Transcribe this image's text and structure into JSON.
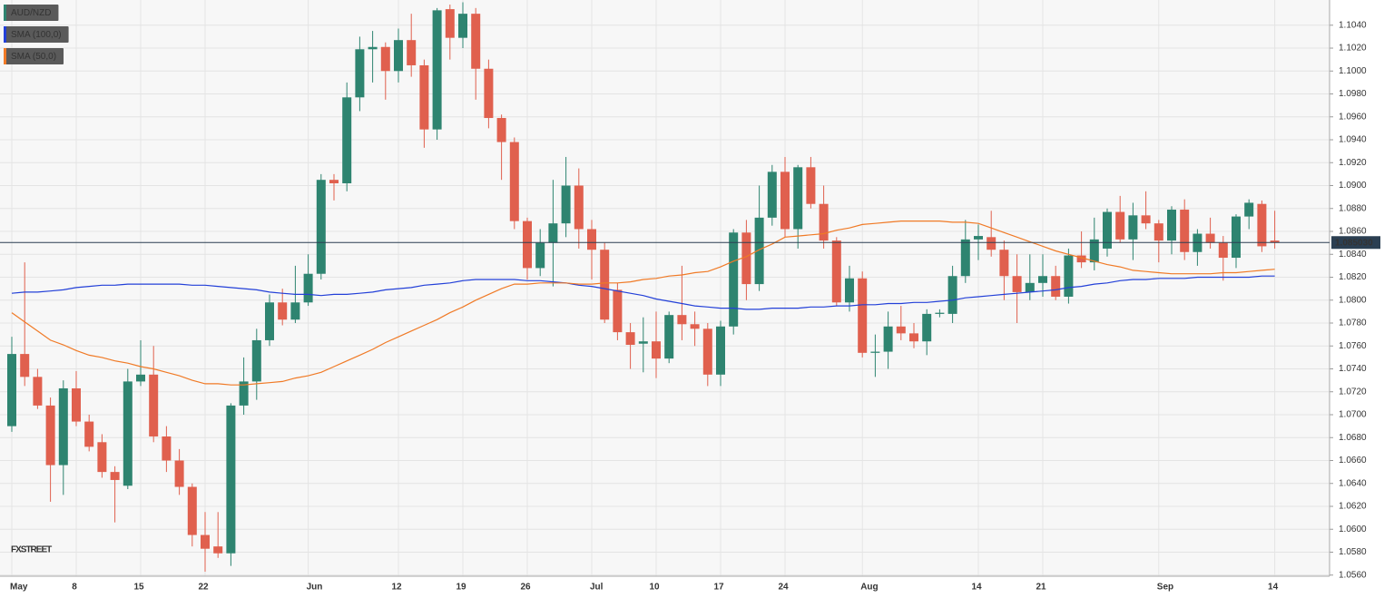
{
  "chart_data": {
    "type": "candlestick",
    "categories": [
      "May",
      null,
      null,
      null,
      null,
      "8",
      null,
      null,
      null,
      null,
      "15",
      null,
      null,
      null,
      null,
      "22",
      null,
      null,
      null,
      null,
      null,
      null,
      null,
      "Jun",
      null,
      null,
      null,
      null,
      null,
      null,
      "12",
      null,
      null,
      null,
      null,
      "19",
      null,
      null,
      null,
      null,
      "26",
      null,
      null,
      null,
      null,
      "Jul",
      null,
      null,
      null,
      null,
      "10",
      null,
      null,
      null,
      null,
      "17",
      null,
      null,
      null,
      null,
      "24",
      null,
      null,
      null,
      null,
      null,
      "Aug",
      null,
      null,
      null,
      null,
      null,
      null,
      null,
      null,
      "14",
      null,
      null,
      null,
      null,
      "21",
      null,
      null,
      null,
      null,
      null,
      null,
      null,
      null,
      "Sep",
      null,
      null,
      null,
      null,
      null,
      null,
      null,
      null,
      "14"
    ],
    "ohlc": {
      "name": "AUD/NZD",
      "up_color": "#2e8470",
      "down_color": "#e0604e",
      "open": [
        1.069,
        1.0753,
        1.0733,
        1.0708,
        1.0656,
        1.0723,
        1.0694,
        1.0676,
        1.065,
        1.0638,
        1.0729,
        1.0735,
        1.0681,
        1.066,
        1.0637,
        1.0595,
        1.0585,
        1.0579,
        1.0708,
        1.0729,
        1.0765,
        1.0798,
        1.0783,
        1.0798,
        1.0823,
        1.0905,
        1.0902,
        1.0977,
        1.1019,
        1.1021,
        1.1,
        1.1027,
        1.1005,
        1.0949,
        1.1054,
        1.1029,
        1.105,
        1.1002,
        1.0959,
        1.0938,
        1.0869,
        1.0828,
        1.085,
        1.0867,
        1.09,
        1.0862,
        1.0844,
        1.0809,
        1.0772,
        1.0762,
        1.0764,
        1.0749,
        1.0787,
        1.0779,
        1.0775,
        1.0735,
        1.0777,
        1.0859,
        1.0814,
        1.0872,
        1.0912,
        1.0862,
        1.0916,
        1.0884,
        1.0852,
        1.0798,
        1.0819,
        1.0754,
        1.0755,
        1.0777,
        1.0771,
        1.0764,
        1.0788,
        1.0788,
        1.0821,
        1.0853,
        1.0855,
        1.0844,
        1.0821,
        1.0807,
        1.0815,
        1.0821,
        1.0803,
        1.0839,
        1.0833,
        1.0845,
        1.0877,
        1.0853,
        1.0874,
        1.0867,
        1.0852,
        1.0879,
        1.0842,
        1.0858,
        1.085,
        1.0837,
        1.0873,
        1.0884,
        1.0852
      ],
      "high": [
        1.0768,
        1.0833,
        1.074,
        1.0715,
        1.073,
        1.0738,
        1.07,
        1.0683,
        1.0655,
        1.074,
        1.0765,
        1.076,
        1.069,
        1.067,
        1.064,
        1.0615,
        1.0615,
        1.071,
        1.075,
        1.0775,
        1.0805,
        1.081,
        1.083,
        1.084,
        1.091,
        1.091,
        1.099,
        1.103,
        1.1035,
        1.1025,
        1.1037,
        1.105,
        1.101,
        1.1055,
        1.1058,
        1.106,
        1.1055,
        1.101,
        1.0962,
        1.0942,
        1.0872,
        1.0862,
        1.0905,
        1.0925,
        1.0915,
        1.087,
        1.085,
        1.0815,
        1.078,
        1.0785,
        1.079,
        1.079,
        1.083,
        1.079,
        1.078,
        1.0782,
        1.0862,
        1.087,
        1.09,
        1.0918,
        1.0925,
        1.0918,
        1.0925,
        1.09,
        1.0855,
        1.083,
        1.0825,
        1.077,
        1.079,
        1.0795,
        1.078,
        1.0792,
        1.0792,
        1.083,
        1.087,
        1.0866,
        1.0878,
        1.0852,
        1.084,
        1.084,
        1.084,
        1.083,
        1.0845,
        1.086,
        1.0872,
        1.088,
        1.0891,
        1.0885,
        1.0895,
        1.087,
        1.0882,
        1.0888,
        1.0862,
        1.0872,
        1.0856,
        1.0875,
        1.0888,
        1.0887,
        1.0878
      ],
      "low": [
        1.0685,
        1.0725,
        1.0705,
        1.0624,
        1.063,
        1.069,
        1.0668,
        1.0645,
        1.0606,
        1.0635,
        1.0725,
        1.0676,
        1.065,
        1.063,
        1.0585,
        1.0563,
        1.0575,
        1.0568,
        1.07,
        1.0713,
        1.076,
        1.0778,
        1.078,
        1.0795,
        1.0818,
        1.0887,
        1.0895,
        1.0965,
        1.099,
        1.0975,
        1.099,
        1.0995,
        1.0933,
        1.094,
        1.101,
        1.102,
        1.0975,
        1.095,
        1.0905,
        1.0862,
        1.0818,
        1.0821,
        1.0812,
        1.0855,
        1.0845,
        1.0818,
        1.078,
        1.0765,
        1.074,
        1.0737,
        1.0732,
        1.0745,
        1.0765,
        1.076,
        1.0725,
        1.0725,
        1.077,
        1.08,
        1.0808,
        1.0865,
        1.0855,
        1.0845,
        1.088,
        1.0845,
        1.0795,
        1.079,
        1.075,
        1.0733,
        1.074,
        1.0765,
        1.0758,
        1.0752,
        1.0785,
        1.078,
        1.0815,
        1.0835,
        1.0838,
        1.08,
        1.078,
        1.08,
        1.0803,
        1.08,
        1.0797,
        1.0828,
        1.0826,
        1.0838,
        1.085,
        1.0835,
        1.0862,
        1.0833,
        1.084,
        1.0835,
        1.083,
        1.0845,
        1.0817,
        1.0828,
        1.0862,
        1.0842,
        1.0845
      ],
      "close": [
        1.0753,
        1.0733,
        1.0708,
        1.0656,
        1.0723,
        1.0694,
        1.0672,
        1.065,
        1.0643,
        1.0729,
        1.0735,
        1.0681,
        1.066,
        1.0637,
        1.0595,
        1.0583,
        1.0579,
        1.0708,
        1.0729,
        1.0765,
        1.0798,
        1.0783,
        1.0798,
        1.0823,
        1.0905,
        1.0902,
        1.0977,
        1.1019,
        1.1021,
        1.1,
        1.1027,
        1.1005,
        1.0949,
        1.1053,
        1.1029,
        1.105,
        1.1002,
        1.0959,
        1.0938,
        1.0869,
        1.0828,
        1.085,
        1.0867,
        1.09,
        1.0862,
        1.0844,
        1.0783,
        1.0772,
        1.0761,
        1.0764,
        1.0749,
        1.0787,
        1.0779,
        1.0775,
        1.0735,
        1.0777,
        1.0859,
        1.0814,
        1.0872,
        1.0912,
        1.0862,
        1.0916,
        1.0884,
        1.0852,
        1.0798,
        1.0819,
        1.0754,
        1.0755,
        1.0777,
        1.0771,
        1.0764,
        1.0788,
        1.0789,
        1.0821,
        1.0853,
        1.0856,
        1.0844,
        1.0821,
        1.0807,
        1.0815,
        1.0821,
        1.0803,
        1.0839,
        1.0833,
        1.0853,
        1.0877,
        1.0853,
        1.0874,
        1.0867,
        1.0852,
        1.0879,
        1.0842,
        1.0858,
        1.085,
        1.0837,
        1.0873,
        1.0885,
        1.0847,
        1.08503
      ]
    },
    "series": [
      {
        "name": "SMA (100,0)",
        "color": "#2340d8",
        "values": [
          1.0806,
          1.0807,
          1.0807,
          1.0808,
          1.0809,
          1.0811,
          1.0812,
          1.0813,
          1.0813,
          1.0814,
          1.0814,
          1.0814,
          1.0814,
          1.0814,
          1.0813,
          1.0813,
          1.0812,
          1.0811,
          1.081,
          1.0809,
          1.0807,
          1.0806,
          1.0805,
          1.0805,
          1.0804,
          1.0805,
          1.0805,
          1.0806,
          1.0807,
          1.0809,
          1.081,
          1.0811,
          1.0813,
          1.0814,
          1.0815,
          1.0817,
          1.0818,
          1.0818,
          1.0818,
          1.0818,
          1.0817,
          1.0817,
          1.0816,
          1.0815,
          1.0813,
          1.0812,
          1.081,
          1.0808,
          1.0806,
          1.0804,
          1.0801,
          1.0799,
          1.0797,
          1.0795,
          1.0794,
          1.0793,
          1.0793,
          1.0792,
          1.0792,
          1.0793,
          1.0793,
          1.0793,
          1.0794,
          1.0794,
          1.0795,
          1.0795,
          1.0796,
          1.0796,
          1.0797,
          1.0797,
          1.0798,
          1.0798,
          1.0799,
          1.08,
          1.0802,
          1.0803,
          1.0804,
          1.0805,
          1.0806,
          1.0807,
          1.0808,
          1.0809,
          1.0811,
          1.0812,
          1.0814,
          1.0815,
          1.0817,
          1.0818,
          1.0818,
          1.0819,
          1.0819,
          1.0819,
          1.082,
          1.082,
          1.082,
          1.082,
          1.082,
          1.0821,
          1.0821
        ]
      },
      {
        "name": "SMA (50,0)",
        "color": "#f07a26",
        "values": [
          1.0789,
          1.0781,
          1.0773,
          1.0765,
          1.0761,
          1.0756,
          1.0752,
          1.075,
          1.0747,
          1.0745,
          1.0742,
          1.074,
          1.0737,
          1.0734,
          1.073,
          1.0727,
          1.0727,
          1.0726,
          1.0726,
          1.0727,
          1.0728,
          1.0729,
          1.0732,
          1.0734,
          1.0737,
          1.0742,
          1.0747,
          1.0752,
          1.0757,
          1.0763,
          1.0768,
          1.0773,
          1.0778,
          1.0783,
          1.0789,
          1.0794,
          1.08,
          1.0805,
          1.081,
          1.0814,
          1.0814,
          1.0815,
          1.0815,
          1.0815,
          1.0814,
          1.0814,
          1.0815,
          1.0815,
          1.0816,
          1.0818,
          1.0819,
          1.0821,
          1.0822,
          1.0824,
          1.0825,
          1.0829,
          1.0834,
          1.0838,
          1.0844,
          1.0849,
          1.0855,
          1.0856,
          1.0857,
          1.0858,
          1.0861,
          1.0863,
          1.0866,
          1.0867,
          1.0868,
          1.0869,
          1.0869,
          1.0869,
          1.0869,
          1.0868,
          1.0868,
          1.0867,
          1.0863,
          1.0859,
          1.0855,
          1.0851,
          1.0847,
          1.0843,
          1.084,
          1.0837,
          1.0834,
          1.0831,
          1.0829,
          1.0826,
          1.0825,
          1.0824,
          1.0823,
          1.0823,
          1.0823,
          1.0823,
          1.0824,
          1.0824,
          1.0825,
          1.0826,
          1.0827
        ]
      }
    ],
    "ylim": [
      1.0559,
      1.1062
    ],
    "yticks": [
      {
        "value": 1.056,
        "label": "1.0560"
      },
      {
        "value": 1.058,
        "label": "1.0580"
      },
      {
        "value": 1.06,
        "label": "1.0600"
      },
      {
        "value": 1.062,
        "label": "1.0620"
      },
      {
        "value": 1.064,
        "label": "1.0640"
      },
      {
        "value": 1.066,
        "label": "1.0660"
      },
      {
        "value": 1.068,
        "label": "1.0680"
      },
      {
        "value": 1.07,
        "label": "1.0700"
      },
      {
        "value": 1.072,
        "label": "1.0720"
      },
      {
        "value": 1.074,
        "label": "1.0740"
      },
      {
        "value": 1.076,
        "label": "1.0760"
      },
      {
        "value": 1.078,
        "label": "1.0780"
      },
      {
        "value": 1.08,
        "label": "1.0800"
      },
      {
        "value": 1.082,
        "label": "1.0820"
      },
      {
        "value": 1.084,
        "label": "1.0840"
      },
      {
        "value": 1.086,
        "label": "1.0860"
      },
      {
        "value": 1.088,
        "label": "1.0880"
      },
      {
        "value": 1.09,
        "label": "1.0900"
      },
      {
        "value": 1.092,
        "label": "1.0920"
      },
      {
        "value": 1.094,
        "label": "1.0940"
      },
      {
        "value": 1.096,
        "label": "1.0960"
      },
      {
        "value": 1.098,
        "label": "1.0980"
      },
      {
        "value": 1.1,
        "label": "1.1000"
      },
      {
        "value": 1.102,
        "label": "1.1020"
      },
      {
        "value": 1.104,
        "label": "1.1040"
      }
    ],
    "last_price": {
      "value": 1.08503,
      "label": "1.085030"
    },
    "grid": true,
    "legend": "top-left",
    "watermark": "FXSTREET"
  }
}
